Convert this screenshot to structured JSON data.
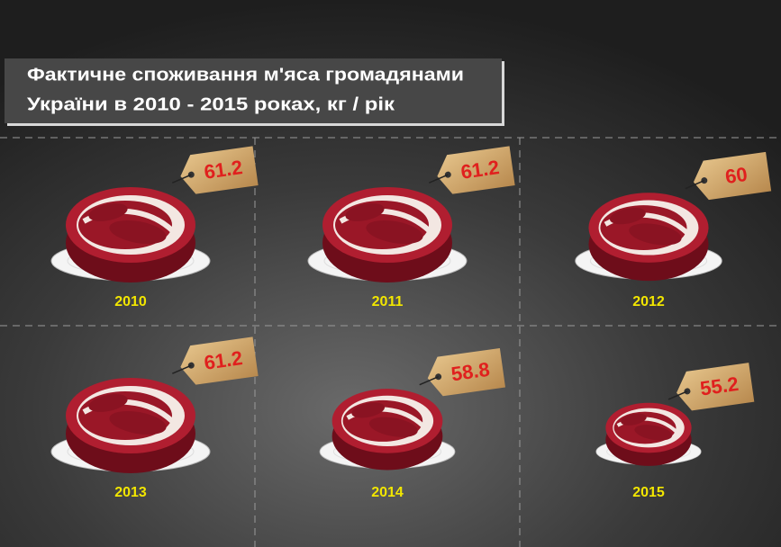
{
  "chart_data": {
    "type": "pictograph",
    "title": [
      "Фактичне споживання м'яса громадянами",
      "України в 2010 - 2015 роках, кг / рік"
    ],
    "categories": [
      "2010",
      "2011",
      "2012",
      "2013",
      "2014",
      "2015"
    ],
    "values": [
      61.2,
      61.2,
      60,
      61.2,
      58.8,
      55.2
    ],
    "color": "#b01e30"
  }
}
